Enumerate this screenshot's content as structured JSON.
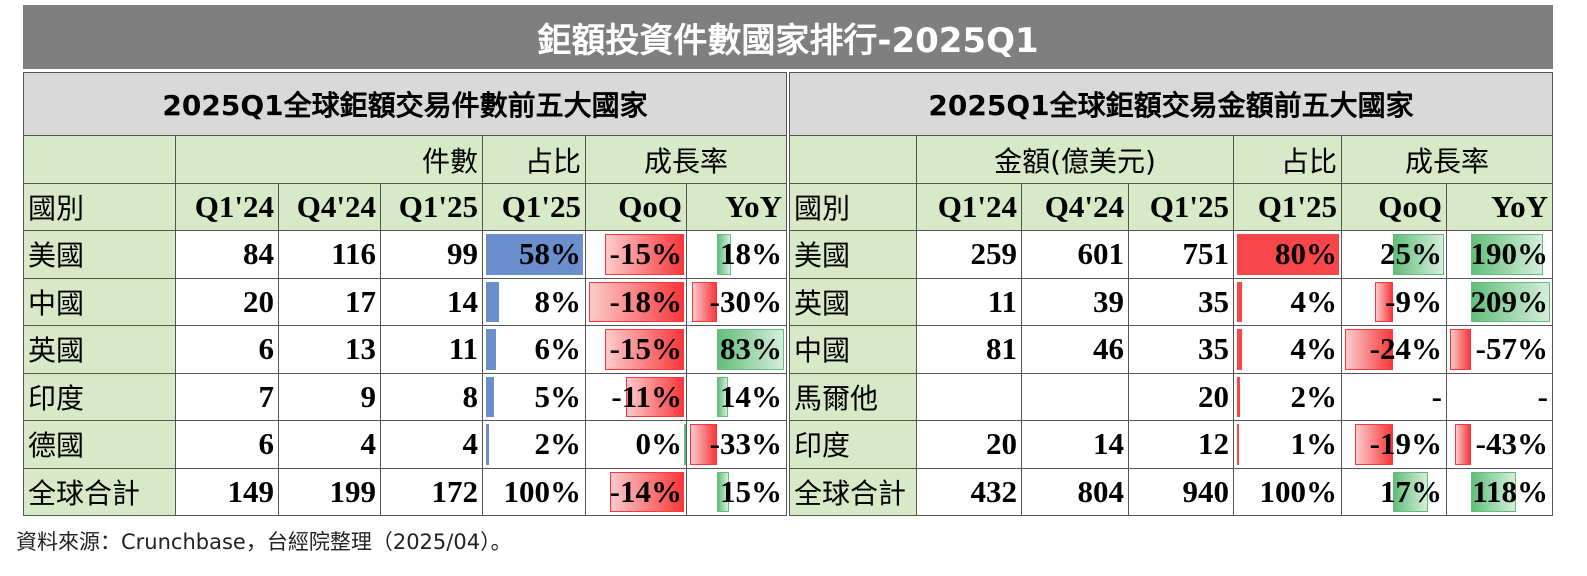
{
  "title": "鉅額投資件數國家排行-2025Q1",
  "tables": [
    {
      "title": "2025Q1全球鉅額交易件數前五大國家",
      "group_headers": [
        "件數",
        "占比",
        "成長率"
      ],
      "columns": [
        "國別",
        "Q1'24",
        "Q4'24",
        "Q1'25",
        "Q1'25",
        "QoQ",
        "YoY"
      ],
      "colors": {
        "share": "#6a8fcc",
        "growth_up": "#63be7b",
        "growth_down": "#f8383b"
      },
      "rows": [
        [
          "美國",
          84,
          116,
          99,
          {
            "value": 58,
            "label": "58%"
          },
          {
            "value": -15,
            "label": "-15%"
          },
          {
            "value": 18,
            "label": "18%"
          }
        ],
        [
          "中國",
          20,
          17,
          14,
          {
            "value": 8,
            "label": "8%"
          },
          {
            "value": -18,
            "label": "-18%"
          },
          {
            "value": -30,
            "label": "-30%"
          }
        ],
        [
          "英國",
          6,
          13,
          11,
          {
            "value": 6,
            "label": "6%"
          },
          {
            "value": -15,
            "label": "-15%"
          },
          {
            "value": 83,
            "label": "83%"
          }
        ],
        [
          "印度",
          7,
          9,
          8,
          {
            "value": 5,
            "label": "5%"
          },
          {
            "value": -11,
            "label": "-11%"
          },
          {
            "value": 14,
            "label": "14%"
          }
        ],
        [
          "德國",
          6,
          4,
          4,
          {
            "value": 2,
            "label": "2%"
          },
          {
            "value": 0,
            "label": "0%"
          },
          {
            "value": -33,
            "label": "-33%"
          }
        ],
        [
          "全球合計",
          149,
          199,
          172,
          "100%",
          {
            "value": -14,
            "label": "-14%"
          },
          {
            "value": 15,
            "label": "15%"
          }
        ]
      ]
    },
    {
      "title": "2025Q1全球鉅額交易金額前五大國家",
      "group_headers": [
        "金額(億美元)",
        "占比",
        "成長率"
      ],
      "columns": [
        "國別",
        "Q1'24",
        "Q4'24",
        "Q1'25",
        "Q1'25",
        "QoQ",
        "YoY"
      ],
      "colors": {
        "share": "#f8474a",
        "growth_up": "#63be7b",
        "growth_down": "#f8383b"
      },
      "rows": [
        [
          "美國",
          259,
          601,
          751,
          {
            "value": 80,
            "label": "80%"
          },
          {
            "value": 25,
            "label": "25%"
          },
          {
            "value": 190,
            "label": "190%"
          }
        ],
        [
          "英國",
          11,
          39,
          35,
          {
            "value": 4,
            "label": "4%"
          },
          {
            "value": -9,
            "label": "-9%"
          },
          {
            "value": 209,
            "label": "209%"
          }
        ],
        [
          "中國",
          81,
          46,
          35,
          {
            "value": 4,
            "label": "4%"
          },
          {
            "value": -24,
            "label": "-24%"
          },
          {
            "value": -57,
            "label": "-57%"
          }
        ],
        [
          "馬爾他",
          null,
          null,
          20,
          {
            "value": 2,
            "label": "2%"
          },
          "-",
          "-"
        ],
        [
          "印度",
          20,
          14,
          12,
          {
            "value": 1,
            "label": "1%"
          },
          {
            "value": -19,
            "label": "-19%"
          },
          {
            "value": -43,
            "label": "-43%"
          }
        ],
        [
          "全球合計",
          432,
          804,
          940,
          "100%",
          {
            "value": 17,
            "label": "17%"
          },
          {
            "value": 118,
            "label": "118%"
          }
        ]
      ]
    }
  ],
  "source": "資料來源：Crunchbase，台經院整理（2025/04）。"
}
